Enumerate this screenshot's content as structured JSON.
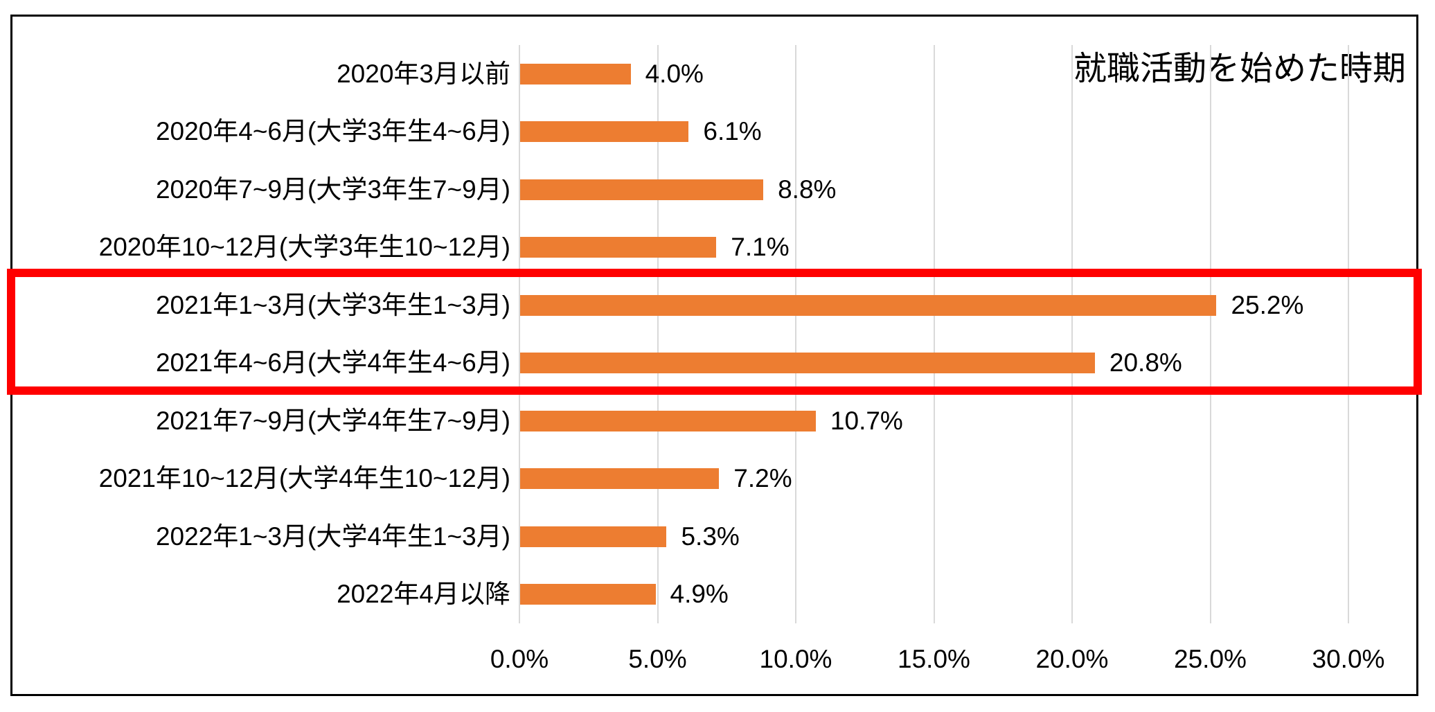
{
  "chart_data": {
    "type": "bar",
    "orientation": "horizontal",
    "title": "就職活動を始めた時期",
    "categories": [
      "2020年3月以前",
      "2020年4~6月(大学3年生4~6月)",
      "2020年7~9月(大学3年生7~9月)",
      "2020年10~12月(大学3年生10~12月)",
      "2021年1~3月(大学3年生1~3月)",
      "2021年4~6月(大学4年生4~6月)",
      "2021年7~9月(大学4年生7~9月)",
      "2021年10~12月(大学4年生10~12月)",
      "2022年1~3月(大学4年生1~3月)",
      "2022年4月以降"
    ],
    "values": [
      4.0,
      6.1,
      8.8,
      7.1,
      25.2,
      20.8,
      10.7,
      7.2,
      5.3,
      4.9
    ],
    "value_labels": [
      "4.0%",
      "6.1%",
      "8.8%",
      "7.1%",
      "25.2%",
      "20.8%",
      "10.7%",
      "7.2%",
      "5.3%",
      "4.9%"
    ],
    "x_ticks": [
      "0.0%",
      "5.0%",
      "10.0%",
      "15.0%",
      "20.0%",
      "25.0%",
      "30.0%"
    ],
    "xlim": [
      0,
      30
    ],
    "grid": true,
    "legend": "none",
    "bar_color": "#ED7D31",
    "gridline_color": "#D9D9D9",
    "frame_color": "#000000",
    "highlight": {
      "indices": [
        4,
        5
      ],
      "color": "#FF0000"
    }
  }
}
